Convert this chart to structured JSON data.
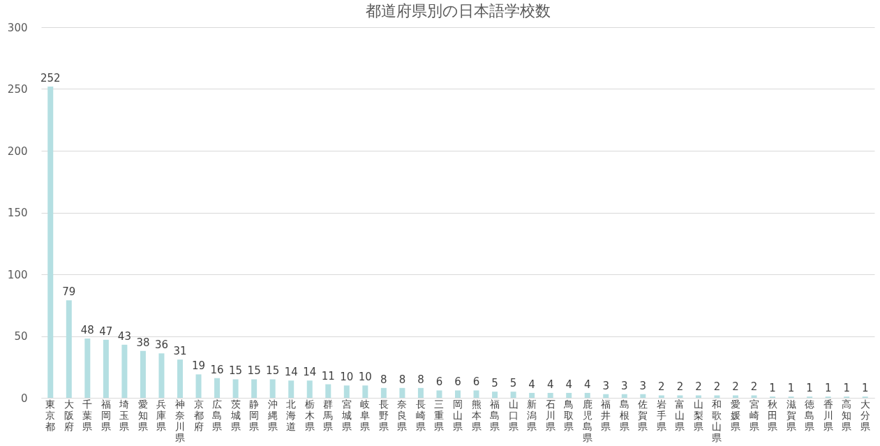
{
  "chart_data": {
    "type": "bar",
    "title": "都道府県別の日本語学校数",
    "categories": [
      "東京都",
      "大阪府",
      "千葉県",
      "福岡県",
      "埼玉県",
      "愛知県",
      "兵庫県",
      "神奈川県",
      "京都府",
      "広島県",
      "茨城県",
      "静岡県",
      "沖縄県",
      "北海道",
      "栃木県",
      "群馬県",
      "宮城県",
      "岐阜県",
      "長野県",
      "奈良県",
      "長崎県",
      "三重県",
      "岡山県",
      "熊本県",
      "福島県",
      "山口県",
      "新潟県",
      "石川県",
      "鳥取県",
      "鹿児島県",
      "福井県",
      "島根県",
      "佐賀県",
      "岩手県",
      "富山県",
      "山梨県",
      "和歌山県",
      "愛媛県",
      "宮崎県",
      "秋田県",
      "滋賀県",
      "徳島県",
      "香川県",
      "高知県",
      "大分県"
    ],
    "values": [
      252,
      79,
      48,
      47,
      43,
      38,
      36,
      31,
      19,
      16,
      15,
      15,
      15,
      14,
      14,
      11,
      10,
      10,
      8,
      8,
      8,
      6,
      6,
      6,
      5,
      5,
      4,
      4,
      4,
      4,
      3,
      3,
      3,
      2,
      2,
      2,
      2,
      2,
      2,
      1,
      1,
      1,
      1,
      1,
      1
    ],
    "color": "#b4dfe2",
    "ylim": [
      0,
      300
    ],
    "yticks": [
      0,
      50,
      100,
      150,
      200,
      250,
      300
    ],
    "grid": "y",
    "data_labels": true
  }
}
